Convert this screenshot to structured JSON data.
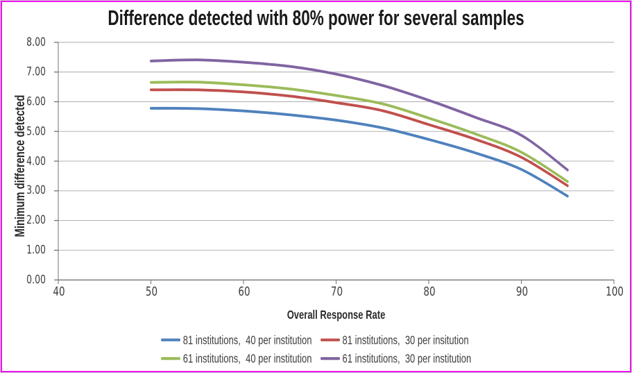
{
  "chart_data": {
    "type": "line",
    "title": "Difference detected with 80% power for several samples",
    "xlabel": "Overall Response Rate",
    "ylabel": "Minimum difference detected",
    "xlim": [
      40,
      100
    ],
    "ylim": [
      0,
      8
    ],
    "x_ticks": [
      40,
      50,
      60,
      70,
      80,
      90,
      100
    ],
    "y_tick_labels": [
      "0.00",
      "1.00",
      "2.00",
      "3.00",
      "4.00",
      "5.00",
      "6.00",
      "7.00",
      "8.00"
    ],
    "grid": "horizontal-major",
    "legend_position": "bottom-two-columns",
    "x": [
      50,
      55,
      60,
      65,
      70,
      75,
      80,
      85,
      90,
      95
    ],
    "series": [
      {
        "name": "81 institutions,  40 per institution",
        "color": "#4F81BD",
        "values": [
          5.78,
          5.77,
          5.69,
          5.56,
          5.38,
          5.12,
          4.73,
          4.28,
          3.72,
          2.82
        ]
      },
      {
        "name": "81 institutions,  30 per insitution",
        "color": "#C0504D",
        "values": [
          6.4,
          6.4,
          6.33,
          6.19,
          5.97,
          5.7,
          5.23,
          4.74,
          4.13,
          3.17
        ]
      },
      {
        "name": "61 institutions,  40 per institution",
        "color": "#9BBB59",
        "values": [
          6.65,
          6.66,
          6.57,
          6.43,
          6.21,
          5.93,
          5.45,
          4.92,
          4.3,
          3.31
        ]
      },
      {
        "name": "61 institutions,  30 per institution",
        "color": "#8064A2",
        "values": [
          7.37,
          7.41,
          7.33,
          7.19,
          6.93,
          6.55,
          6.05,
          5.48,
          4.87,
          3.7
        ]
      }
    ]
  },
  "colors": {
    "border": "#ee14ee",
    "gridline": "#b3b3b3",
    "axis": "#737373",
    "tick_text": "#3d3d3d",
    "title_text": "#1a1a1a"
  }
}
